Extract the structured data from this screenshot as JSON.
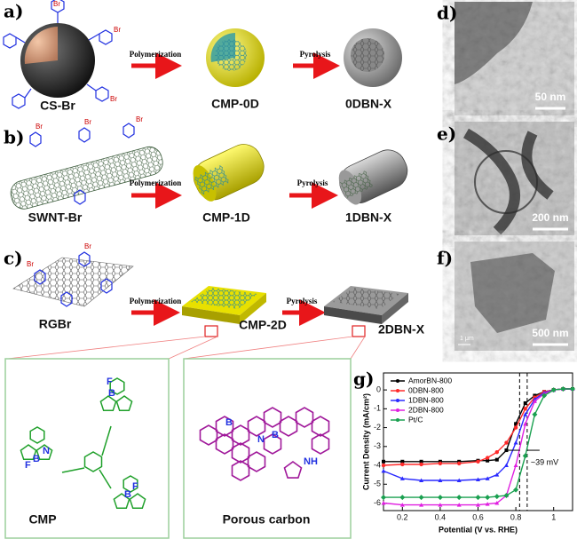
{
  "panels": [
    {
      "label": "a)",
      "precursor": "CS-Br",
      "polymer": "CMP-0D",
      "product": "0DBN-X"
    },
    {
      "label": "b)",
      "precursor": "SWNT-Br",
      "polymer": "CMP-1D",
      "product": "1DBN-X"
    },
    {
      "label": "c)",
      "precursor": "RGBr",
      "polymer": "CMP-2D",
      "product": "2DBN-X"
    }
  ],
  "steps": {
    "polymerization": "Polymerization",
    "pyrolysis": "Pyrolysis"
  },
  "substituent": "Br",
  "tem": [
    {
      "label": "d)",
      "scale": "50 nm"
    },
    {
      "label": "e)",
      "scale": "200 nm"
    },
    {
      "label": "f)",
      "scale": "500 nm",
      "inset_scale": "1 μm"
    }
  ],
  "structures": {
    "cmp": "CMP",
    "carbon": "Porous carbon",
    "boron": "B",
    "nitrogen": "N",
    "fluorine": "F",
    "amine": "NH"
  },
  "chart_data": {
    "type": "line",
    "panel_label": "g)",
    "x_label": "Potential (V vs. RHE)",
    "y_label": "Current Density (mA/cm²)",
    "annotation": "~39 mV",
    "x": [
      0.1,
      0.2,
      0.3,
      0.4,
      0.5,
      0.6,
      0.65,
      0.7,
      0.75,
      0.8,
      0.85,
      0.9,
      0.95,
      1.0,
      1.05,
      1.1
    ],
    "series": [
      {
        "name": "AmorBN-800",
        "color": "#000000",
        "values": [
          -3.8,
          -3.8,
          -3.8,
          -3.8,
          -3.8,
          -3.75,
          -3.75,
          -3.7,
          -3.2,
          -1.8,
          -0.7,
          -0.3,
          -0.1,
          0,
          0.05,
          0.05
        ]
      },
      {
        "name": "0DBN-800",
        "color": "#ff2a2a",
        "values": [
          -4.0,
          -3.95,
          -3.95,
          -3.9,
          -3.9,
          -3.8,
          -3.6,
          -3.3,
          -2.8,
          -2.0,
          -1.0,
          -0.4,
          -0.1,
          0,
          0.05,
          0.05
        ]
      },
      {
        "name": "1DBN-800",
        "color": "#2a2aff",
        "values": [
          -4.3,
          -4.7,
          -4.8,
          -4.8,
          -4.8,
          -4.75,
          -4.7,
          -4.5,
          -4.0,
          -2.8,
          -1.3,
          -0.5,
          -0.15,
          0,
          0.05,
          0.05
        ]
      },
      {
        "name": "2DBN-800",
        "color": "#e020e0",
        "values": [
          -6.0,
          -6.1,
          -6.1,
          -6.1,
          -6.1,
          -6.1,
          -6.05,
          -6.0,
          -5.6,
          -4.0,
          -1.8,
          -0.6,
          -0.2,
          0,
          0.05,
          0.05
        ]
      },
      {
        "name": "Pt/C",
        "color": "#1aa050",
        "values": [
          -5.7,
          -5.7,
          -5.7,
          -5.7,
          -5.7,
          -5.7,
          -5.7,
          -5.65,
          -5.6,
          -5.3,
          -3.5,
          -1.3,
          -0.3,
          0,
          0.05,
          0.05
        ]
      }
    ],
    "vlines": [
      0.82,
      0.86
    ],
    "xlim": [
      0.1,
      1.1
    ],
    "ylim": [
      -6.4,
      0.9
    ],
    "xticks": [
      0.2,
      0.4,
      0.6,
      0.8,
      1.0
    ],
    "yticks": [
      -6,
      -5,
      -4,
      -3,
      -2,
      -1,
      0
    ],
    "legend": "upper-left"
  }
}
